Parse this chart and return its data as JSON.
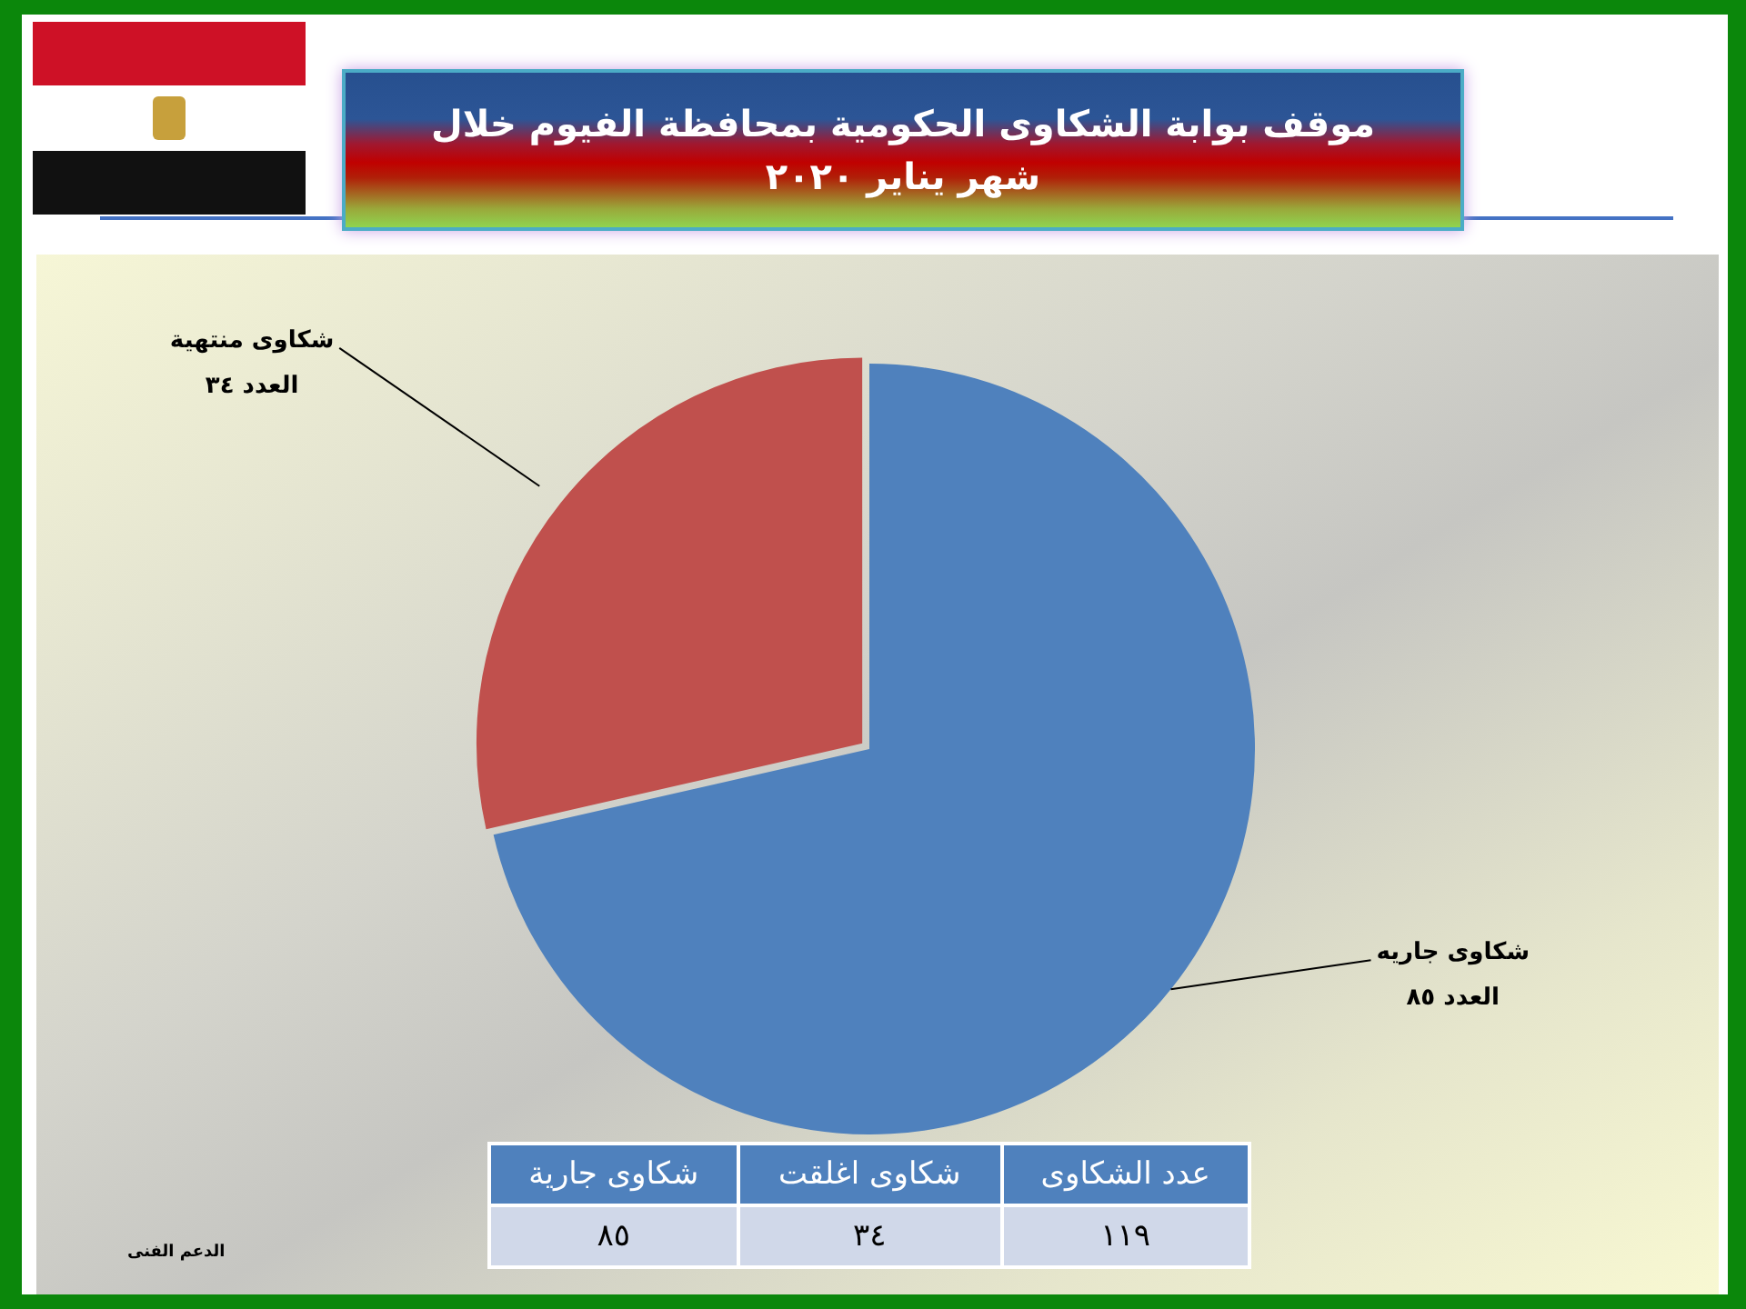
{
  "chart_data": [
    {
      "type": "pie",
      "title": "موقف بوابة الشكاوى الحكومية بمحافظة الفيوم خلال شهر يناير ٢٠٢٠",
      "categories": [
        "شكاوى جاريه",
        "شكاوى منتهية"
      ],
      "values": [
        85,
        34
      ],
      "colors": [
        "#4f81bd",
        "#c0504d"
      ],
      "value_labels": [
        "العدد ٨٥",
        "العدد ٣٤"
      ],
      "annotations": [
        "الدعم الفنى"
      ]
    },
    {
      "type": "other",
      "categories": [
        "شكاوى جارية",
        "شكاوى اغلقت",
        "عدد الشكاوى"
      ],
      "value_labels": [
        "٨٥",
        "٣٤",
        "١١٩"
      ]
    }
  ]
}
